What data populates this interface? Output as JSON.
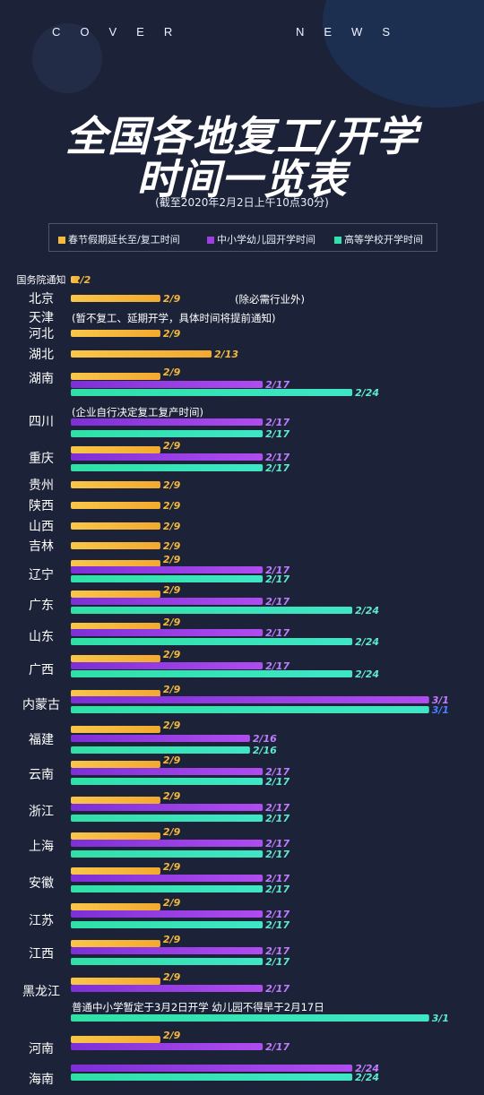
{
  "header": {
    "brand_left": "COVER",
    "brand_right": "NEWS"
  },
  "title_line1": "全国各地复工/开学",
  "title_line2": "时间一览表",
  "subtitle": "(截至2020年2月2日上午10点30分)",
  "colors": {
    "work": "#f5b93b",
    "school": "#9b3fe0",
    "college": "#33e0b0",
    "background": "#1c2338"
  },
  "legend": [
    {
      "label": "春节假期延长至/复工时间",
      "color": "#f5b93b"
    },
    {
      "label": "中小学幼儿园开学时间",
      "color": "#9b3fe0"
    },
    {
      "label": "高等学校开学时间",
      "color": "#33e0b0"
    }
  ],
  "chart_data": {
    "type": "bar",
    "orientation": "horizontal",
    "value_format": "month/day",
    "series": [
      {
        "name": "春节假期延长至/复工时间",
        "color": "#f5b93b"
      },
      {
        "name": "中小学幼儿园开学时间",
        "color": "#9b3fe0"
      },
      {
        "name": "高等学校开学时间",
        "color": "#33e0b0"
      }
    ],
    "rows": [
      {
        "label": "国务院通知",
        "work": "2/2",
        "school": null,
        "college": null
      },
      {
        "label": "北京",
        "work": "2/9",
        "school": null,
        "college": null,
        "note": "(除必需行业外)"
      },
      {
        "label": "天津",
        "work": null,
        "school": null,
        "college": null,
        "note": "(暂不复工、延期开学，具体时间将提前通知)"
      },
      {
        "label": "河北",
        "work": "2/9",
        "school": null,
        "college": null
      },
      {
        "label": "湖北",
        "work": "2/13",
        "school": null,
        "college": null
      },
      {
        "label": "湖南",
        "work": "2/9",
        "school": "2/17",
        "college": "2/24"
      },
      {
        "label": "四川",
        "work": null,
        "school": "2/17",
        "college": "2/17",
        "note": "(企业自行决定复工复产时间)"
      },
      {
        "label": "重庆",
        "work": "2/9",
        "school": "2/17",
        "college": "2/17"
      },
      {
        "label": "贵州",
        "work": "2/9",
        "school": null,
        "college": null
      },
      {
        "label": "陕西",
        "work": "2/9",
        "school": null,
        "college": null
      },
      {
        "label": "山西",
        "work": "2/9",
        "school": null,
        "college": null
      },
      {
        "label": "吉林",
        "work": "2/9",
        "school": null,
        "college": null
      },
      {
        "label": "辽宁",
        "work": "2/9",
        "school": "2/17",
        "college": "2/17"
      },
      {
        "label": "广东",
        "work": "2/9",
        "school": "2/17",
        "college": "2/24"
      },
      {
        "label": "山东",
        "work": "2/9",
        "school": "2/17",
        "college": "2/24"
      },
      {
        "label": "广西",
        "work": "2/9",
        "school": "2/17",
        "college": "2/24"
      },
      {
        "label": "内蒙古",
        "work": "2/9",
        "school": "3/1",
        "college": "3/1"
      },
      {
        "label": "福建",
        "work": "2/9",
        "school": "2/16",
        "college": "2/16"
      },
      {
        "label": "云南",
        "work": "2/9",
        "school": "2/17",
        "college": "2/17"
      },
      {
        "label": "浙江",
        "work": "2/9",
        "school": "2/17",
        "college": "2/17"
      },
      {
        "label": "上海",
        "work": "2/9",
        "school": "2/17",
        "college": "2/17"
      },
      {
        "label": "安徽",
        "work": "2/9",
        "school": "2/17",
        "college": "2/17"
      },
      {
        "label": "江苏",
        "work": "2/9",
        "school": "2/17",
        "college": "2/17"
      },
      {
        "label": "江西",
        "work": "2/9",
        "school": "2/17",
        "college": "2/17"
      },
      {
        "label": "黑龙江",
        "work": "2/9",
        "school": "2/17",
        "college": "3/1",
        "note": "普通中小学暂定于3月2日开学 幼儿园不得早于2月17日"
      },
      {
        "label": "河南",
        "work": "2/9",
        "school": "2/17",
        "college": null
      },
      {
        "label": "海南",
        "work": null,
        "school": "2/24",
        "college": "2/24"
      }
    ]
  }
}
